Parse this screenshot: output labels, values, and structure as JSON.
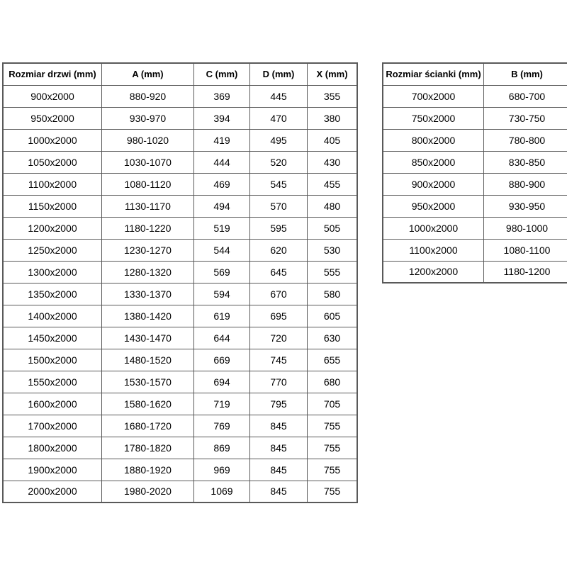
{
  "colors": {
    "background": "#ffffff",
    "border": "#595959",
    "text": "#000000"
  },
  "door_table": {
    "headers": [
      "Rozmiar drzwi (mm)",
      "A (mm)",
      "C (mm)",
      "D (mm)",
      "X (mm)"
    ],
    "rows": [
      [
        "900x2000",
        "880-920",
        "369",
        "445",
        "355"
      ],
      [
        "950x2000",
        "930-970",
        "394",
        "470",
        "380"
      ],
      [
        "1000x2000",
        "980-1020",
        "419",
        "495",
        "405"
      ],
      [
        "1050x2000",
        "1030-1070",
        "444",
        "520",
        "430"
      ],
      [
        "1100x2000",
        "1080-1120",
        "469",
        "545",
        "455"
      ],
      [
        "1150x2000",
        "1130-1170",
        "494",
        "570",
        "480"
      ],
      [
        "1200x2000",
        "1180-1220",
        "519",
        "595",
        "505"
      ],
      [
        "1250x2000",
        "1230-1270",
        "544",
        "620",
        "530"
      ],
      [
        "1300x2000",
        "1280-1320",
        "569",
        "645",
        "555"
      ],
      [
        "1350x2000",
        "1330-1370",
        "594",
        "670",
        "580"
      ],
      [
        "1400x2000",
        "1380-1420",
        "619",
        "695",
        "605"
      ],
      [
        "1450x2000",
        "1430-1470",
        "644",
        "720",
        "630"
      ],
      [
        "1500x2000",
        "1480-1520",
        "669",
        "745",
        "655"
      ],
      [
        "1550x2000",
        "1530-1570",
        "694",
        "770",
        "680"
      ],
      [
        "1600x2000",
        "1580-1620",
        "719",
        "795",
        "705"
      ],
      [
        "1700x2000",
        "1680-1720",
        "769",
        "845",
        "755"
      ],
      [
        "1800x2000",
        "1780-1820",
        "869",
        "845",
        "755"
      ],
      [
        "1900x2000",
        "1880-1920",
        "969",
        "845",
        "755"
      ],
      [
        "2000x2000",
        "1980-2020",
        "1069",
        "845",
        "755"
      ]
    ]
  },
  "wall_table": {
    "headers": [
      "Rozmiar ścianki (mm)",
      "B (mm)"
    ],
    "rows": [
      [
        "700x2000",
        "680-700"
      ],
      [
        "750x2000",
        "730-750"
      ],
      [
        "800x2000",
        "780-800"
      ],
      [
        "850x2000",
        "830-850"
      ],
      [
        "900x2000",
        "880-900"
      ],
      [
        "950x2000",
        "930-950"
      ],
      [
        "1000x2000",
        "980-1000"
      ],
      [
        "1100x2000",
        "1080-1100"
      ],
      [
        "1200x2000",
        "1180-1200"
      ]
    ]
  }
}
